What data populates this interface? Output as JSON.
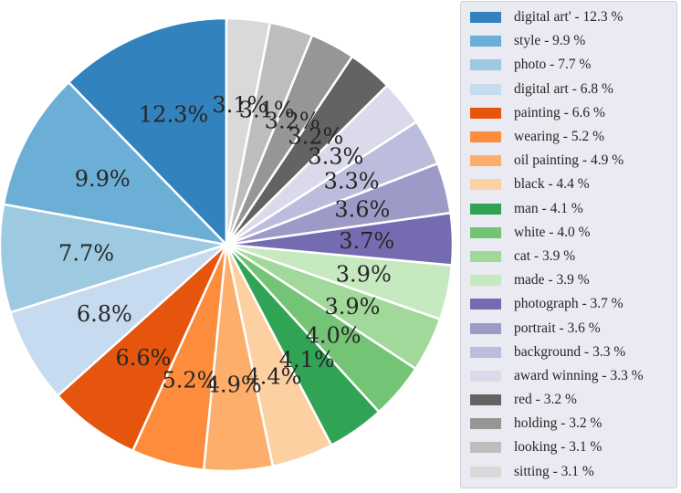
{
  "chart_data": {
    "type": "pie",
    "title": "",
    "start_angle_deg": 90,
    "direction": "counterclockwise",
    "legend_position": "right",
    "slices": [
      {
        "label": "digital art'",
        "value": 12.3,
        "pct_label": "12.3%",
        "legend": "digital art' - 12.3 %",
        "color": "#3182bd"
      },
      {
        "label": "style",
        "value": 9.9,
        "pct_label": "9.9%",
        "legend": "style - 9.9 %",
        "color": "#6baed6"
      },
      {
        "label": "photo",
        "value": 7.7,
        "pct_label": "7.7%",
        "legend": "photo - 7.7 %",
        "color": "#9ecae1"
      },
      {
        "label": "digital art",
        "value": 6.8,
        "pct_label": "6.8%",
        "legend": "digital art - 6.8 %",
        "color": "#c6dbef"
      },
      {
        "label": "painting",
        "value": 6.6,
        "pct_label": "6.6%",
        "legend": "painting - 6.6 %",
        "color": "#e6550d"
      },
      {
        "label": "wearing",
        "value": 5.2,
        "pct_label": "5.2%",
        "legend": "wearing - 5.2 %",
        "color": "#fd8d3c"
      },
      {
        "label": "oil painting",
        "value": 4.9,
        "pct_label": "4.9%",
        "legend": "oil painting - 4.9 %",
        "color": "#fdae6b"
      },
      {
        "label": "black",
        "value": 4.4,
        "pct_label": "4.4%",
        "legend": "black - 4.4 %",
        "color": "#fdd0a2"
      },
      {
        "label": "man",
        "value": 4.1,
        "pct_label": "4.1%",
        "legend": "man - 4.1 %",
        "color": "#31a354"
      },
      {
        "label": "white",
        "value": 4.0,
        "pct_label": "4.0%",
        "legend": "white - 4.0 %",
        "color": "#74c476"
      },
      {
        "label": "cat",
        "value": 3.9,
        "pct_label": "3.9%",
        "legend": "cat - 3.9 %",
        "color": "#a1d99b"
      },
      {
        "label": "made",
        "value": 3.9,
        "pct_label": "3.9%",
        "legend": "made - 3.9 %",
        "color": "#c7e9c0"
      },
      {
        "label": "photograph",
        "value": 3.7,
        "pct_label": "3.7%",
        "legend": "photograph - 3.7 %",
        "color": "#756bb1"
      },
      {
        "label": "portrait",
        "value": 3.6,
        "pct_label": "3.6%",
        "legend": "portrait - 3.6 %",
        "color": "#9e9ac8"
      },
      {
        "label": "background",
        "value": 3.3,
        "pct_label": "3.3%",
        "legend": "background - 3.3 %",
        "color": "#bcbddc"
      },
      {
        "label": "award winning",
        "value": 3.3,
        "pct_label": "3.3%",
        "legend": "award winning - 3.3 %",
        "color": "#dadaeb"
      },
      {
        "label": "red",
        "value": 3.2,
        "pct_label": "3.2%",
        "legend": "red - 3.2 %",
        "color": "#636363"
      },
      {
        "label": "holding",
        "value": 3.2,
        "pct_label": "3.2%",
        "legend": "holding - 3.2 %",
        "color": "#969696"
      },
      {
        "label": "looking",
        "value": 3.1,
        "pct_label": "3.1%",
        "legend": "looking - 3.1 %",
        "color": "#bdbdbd"
      },
      {
        "label": "sitting",
        "value": 3.1,
        "pct_label": "3.1%",
        "legend": "sitting - 3.1 %",
        "color": "#d9d9d9"
      }
    ]
  }
}
